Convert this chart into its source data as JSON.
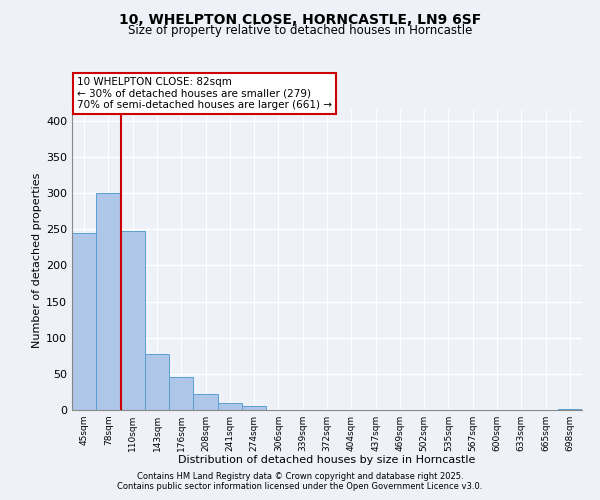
{
  "title1": "10, WHELPTON CLOSE, HORNCASTLE, LN9 6SF",
  "title2": "Size of property relative to detached houses in Horncastle",
  "xlabel": "Distribution of detached houses by size in Horncastle",
  "ylabel": "Number of detached properties",
  "bar_labels": [
    "45sqm",
    "78sqm",
    "110sqm",
    "143sqm",
    "176sqm",
    "208sqm",
    "241sqm",
    "274sqm",
    "306sqm",
    "339sqm",
    "372sqm",
    "404sqm",
    "437sqm",
    "469sqm",
    "502sqm",
    "535sqm",
    "567sqm",
    "600sqm",
    "633sqm",
    "665sqm",
    "698sqm"
  ],
  "bar_values": [
    245,
    300,
    248,
    77,
    45,
    22,
    10,
    6,
    0,
    0,
    0,
    0,
    0,
    0,
    0,
    0,
    0,
    0,
    0,
    0,
    1
  ],
  "bar_color": "#aec6e8",
  "bar_edge_color": "#5a9fd4",
  "vline_x": 1.5,
  "vline_color": "#cc0000",
  "annotation_line1": "10 WHELPTON CLOSE: 82sqm",
  "annotation_line2": "← 30% of detached houses are smaller (279)",
  "annotation_line3": "70% of semi-detached houses are larger (661) →",
  "annotation_box_color": "#ffffff",
  "annotation_box_edge": "#cc0000",
  "ylim": [
    0,
    415
  ],
  "yticks": [
    0,
    50,
    100,
    150,
    200,
    250,
    300,
    350,
    400
  ],
  "bg_color": "#eef2f8",
  "grid_color": "#ffffff",
  "footer1": "Contains HM Land Registry data © Crown copyright and database right 2025.",
  "footer2": "Contains public sector information licensed under the Open Government Licence v3.0."
}
